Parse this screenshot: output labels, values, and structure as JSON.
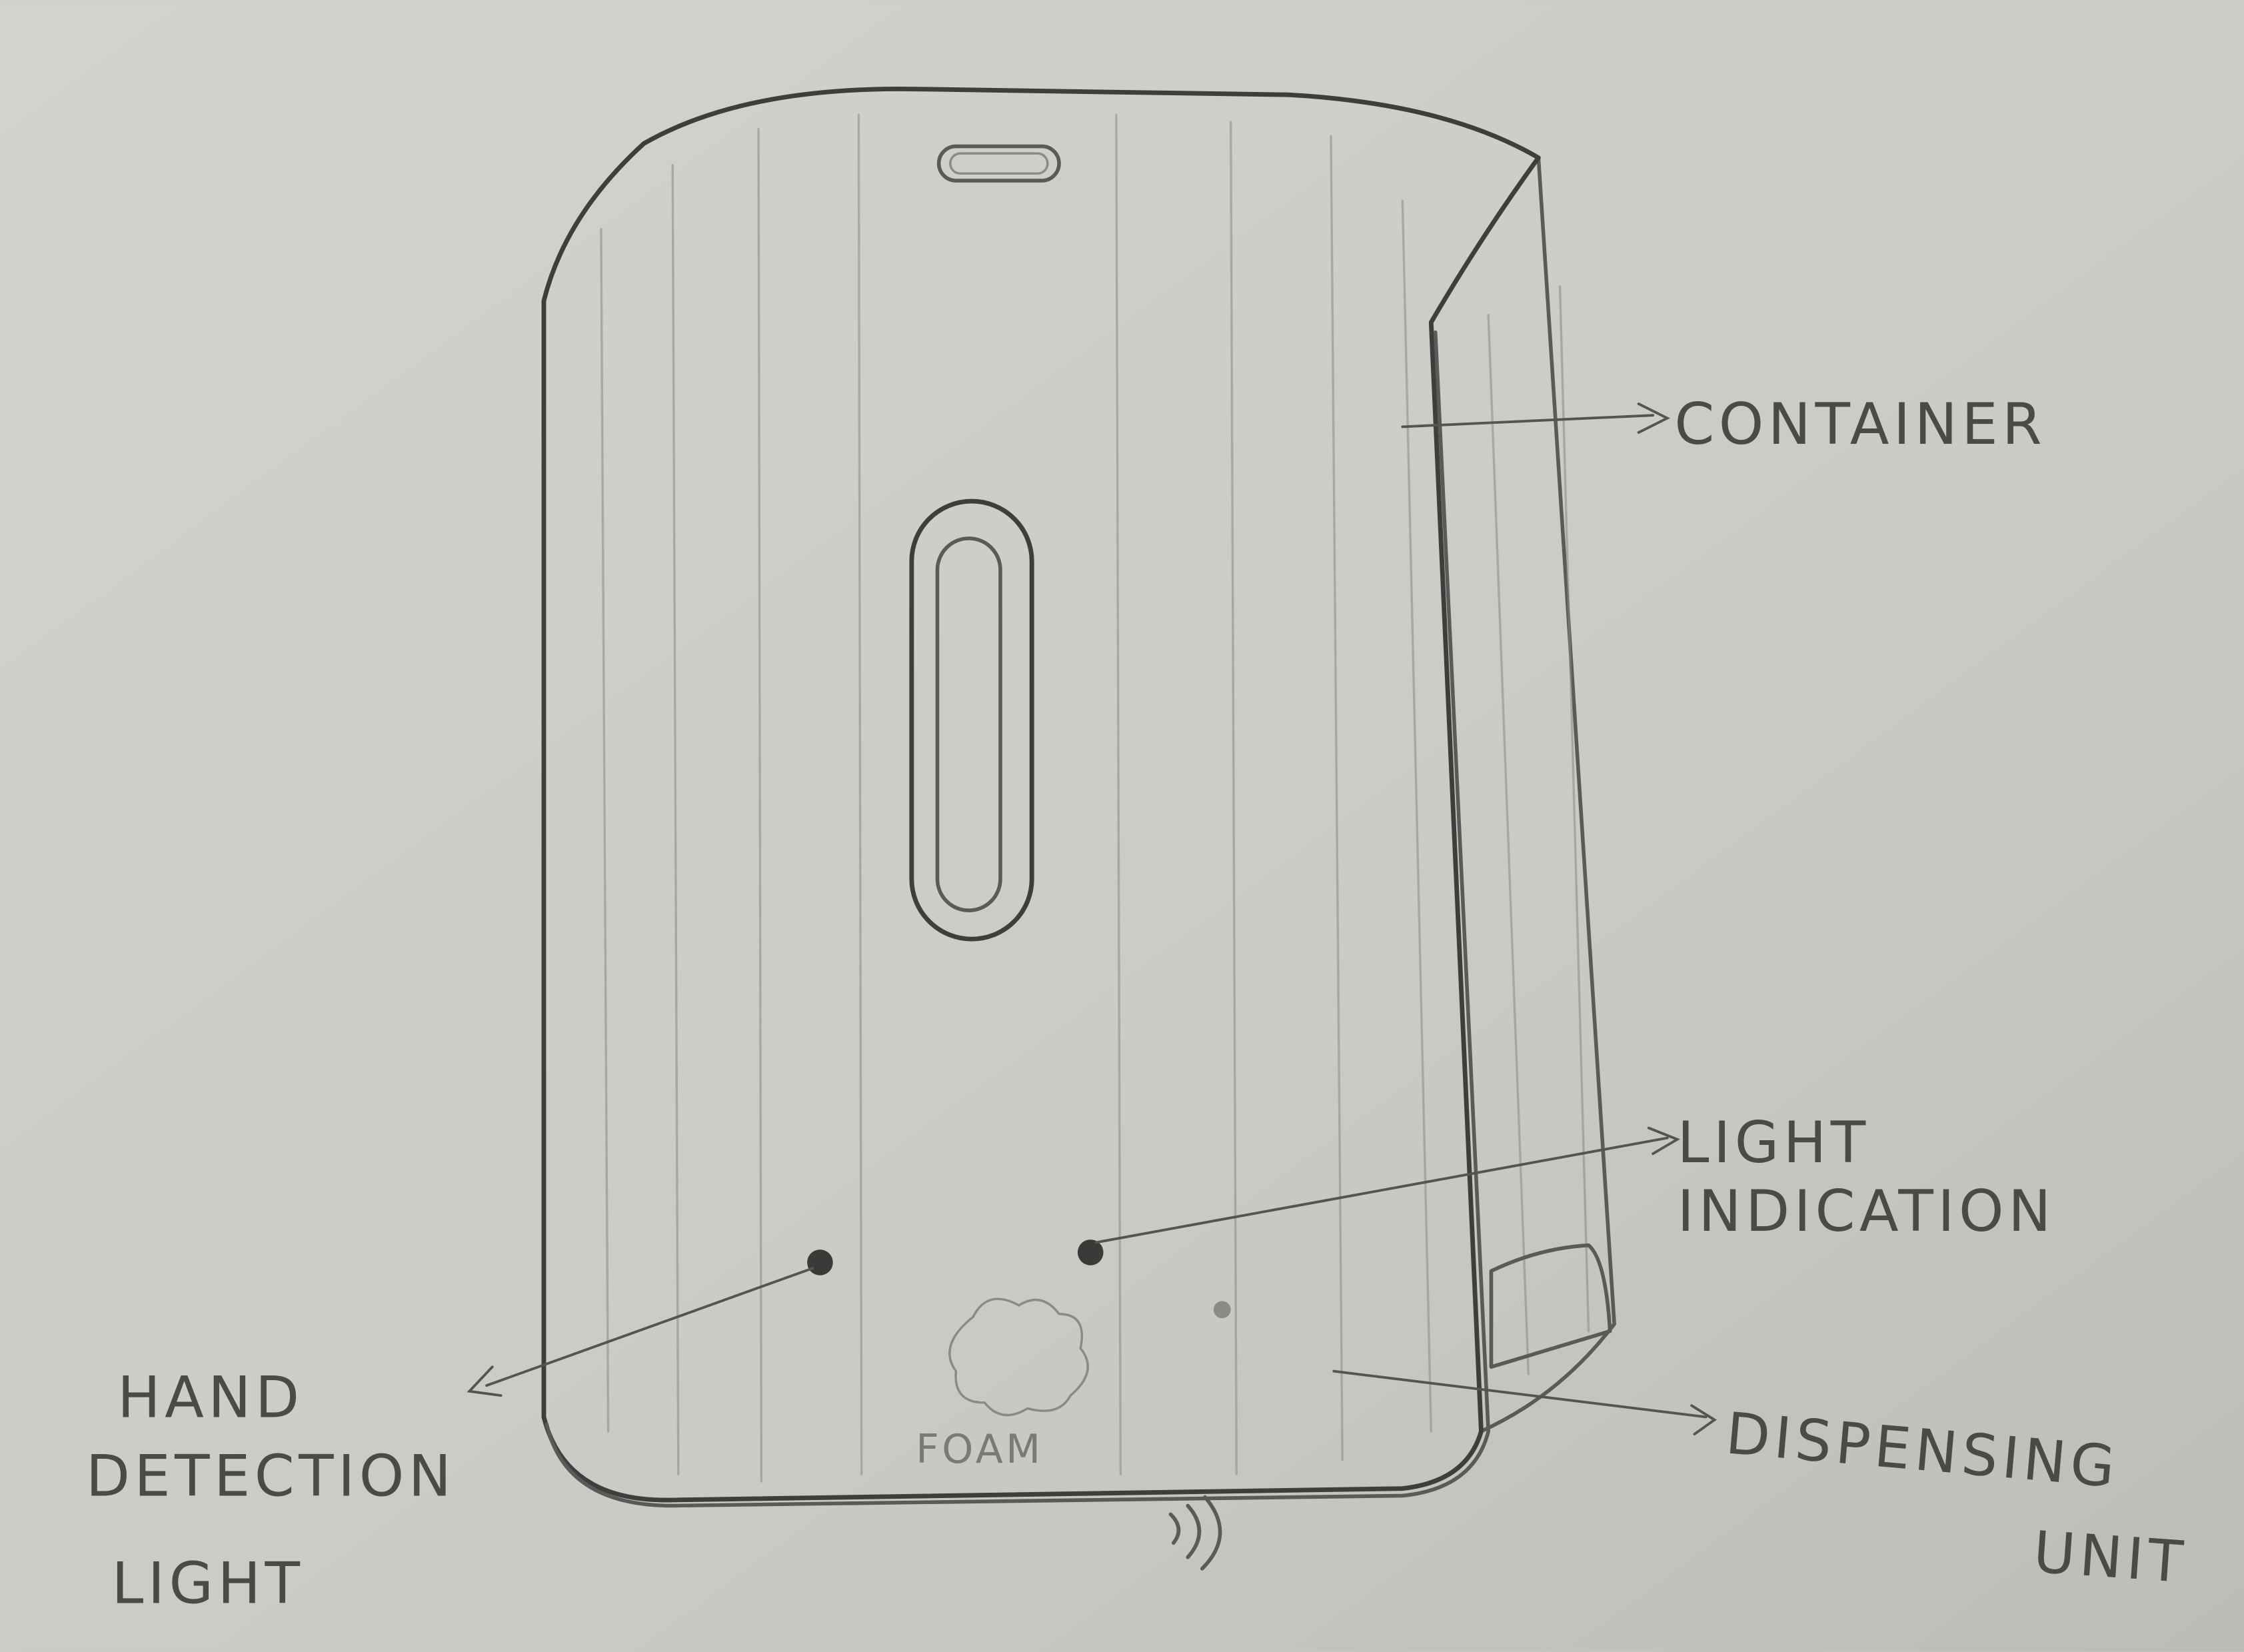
{
  "labels": {
    "container": "CONTAINER",
    "light_indication": [
      "LIGHT",
      "INDICATION"
    ],
    "hand_detection": [
      "HAND",
      "DETECTION",
      "LIGHT"
    ],
    "dispensing_unit": [
      "DISPENSING",
      "UNIT"
    ],
    "foam": "FOAM"
  },
  "colors": {
    "paper": "#c9c8c4",
    "pencil": "#5a5a58"
  }
}
